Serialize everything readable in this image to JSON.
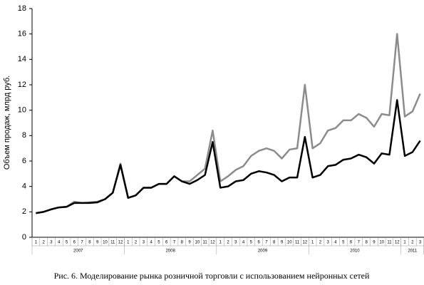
{
  "chart_data": {
    "type": "line",
    "y_label": "Объем продаж, млрд руб.",
    "caption": "Рис. 6. Моделирование рынка розничной торговли с использованием нейронных сетей",
    "categories": [
      "1",
      "2",
      "3",
      "4",
      "5",
      "6",
      "7",
      "8",
      "9",
      "10",
      "11",
      "12",
      "1",
      "2",
      "3",
      "4",
      "5",
      "6",
      "7",
      "8",
      "9",
      "10",
      "11",
      "12",
      "1",
      "2",
      "3",
      "4",
      "5",
      "6",
      "7",
      "8",
      "9",
      "10",
      "11",
      "12",
      "1",
      "2",
      "3",
      "4",
      "5",
      "6",
      "7",
      "8",
      "9",
      "10",
      "11",
      "12",
      "1",
      "2",
      "3"
    ],
    "years": [
      "2007",
      "2008",
      "2009",
      "2010",
      "2011"
    ],
    "series": [
      {
        "color": "#8c8c8c",
        "values": [
          1.9,
          2.0,
          2.2,
          2.35,
          2.4,
          2.8,
          2.7,
          2.75,
          2.8,
          3.0,
          3.5,
          5.8,
          3.1,
          3.3,
          3.9,
          3.9,
          4.2,
          4.2,
          4.8,
          4.4,
          4.4,
          4.9,
          5.4,
          8.4,
          4.4,
          4.8,
          5.3,
          5.6,
          6.4,
          6.8,
          7.0,
          6.8,
          6.2,
          6.9,
          7.0,
          12.0,
          7.0,
          7.4,
          8.4,
          8.6,
          9.2,
          9.2,
          9.7,
          9.4,
          8.7,
          9.7,
          9.6,
          16.0,
          9.5,
          9.9,
          11.3
        ]
      },
      {
        "color": "#000000",
        "values": [
          1.9,
          2.0,
          2.2,
          2.35,
          2.4,
          2.7,
          2.7,
          2.7,
          2.75,
          3.0,
          3.5,
          5.7,
          3.1,
          3.3,
          3.9,
          3.9,
          4.2,
          4.2,
          4.8,
          4.4,
          4.2,
          4.5,
          4.9,
          7.5,
          3.9,
          4.0,
          4.4,
          4.5,
          5.0,
          5.2,
          5.1,
          4.9,
          4.4,
          4.7,
          4.7,
          7.9,
          4.7,
          4.9,
          5.6,
          5.7,
          6.1,
          6.2,
          6.5,
          6.3,
          5.8,
          6.6,
          6.5,
          10.8,
          6.4,
          6.7,
          7.6
        ]
      }
    ],
    "ylim": [
      0,
      18
    ],
    "yticks": [
      0,
      2,
      4,
      6,
      8,
      10,
      12,
      14,
      16,
      18
    ]
  }
}
